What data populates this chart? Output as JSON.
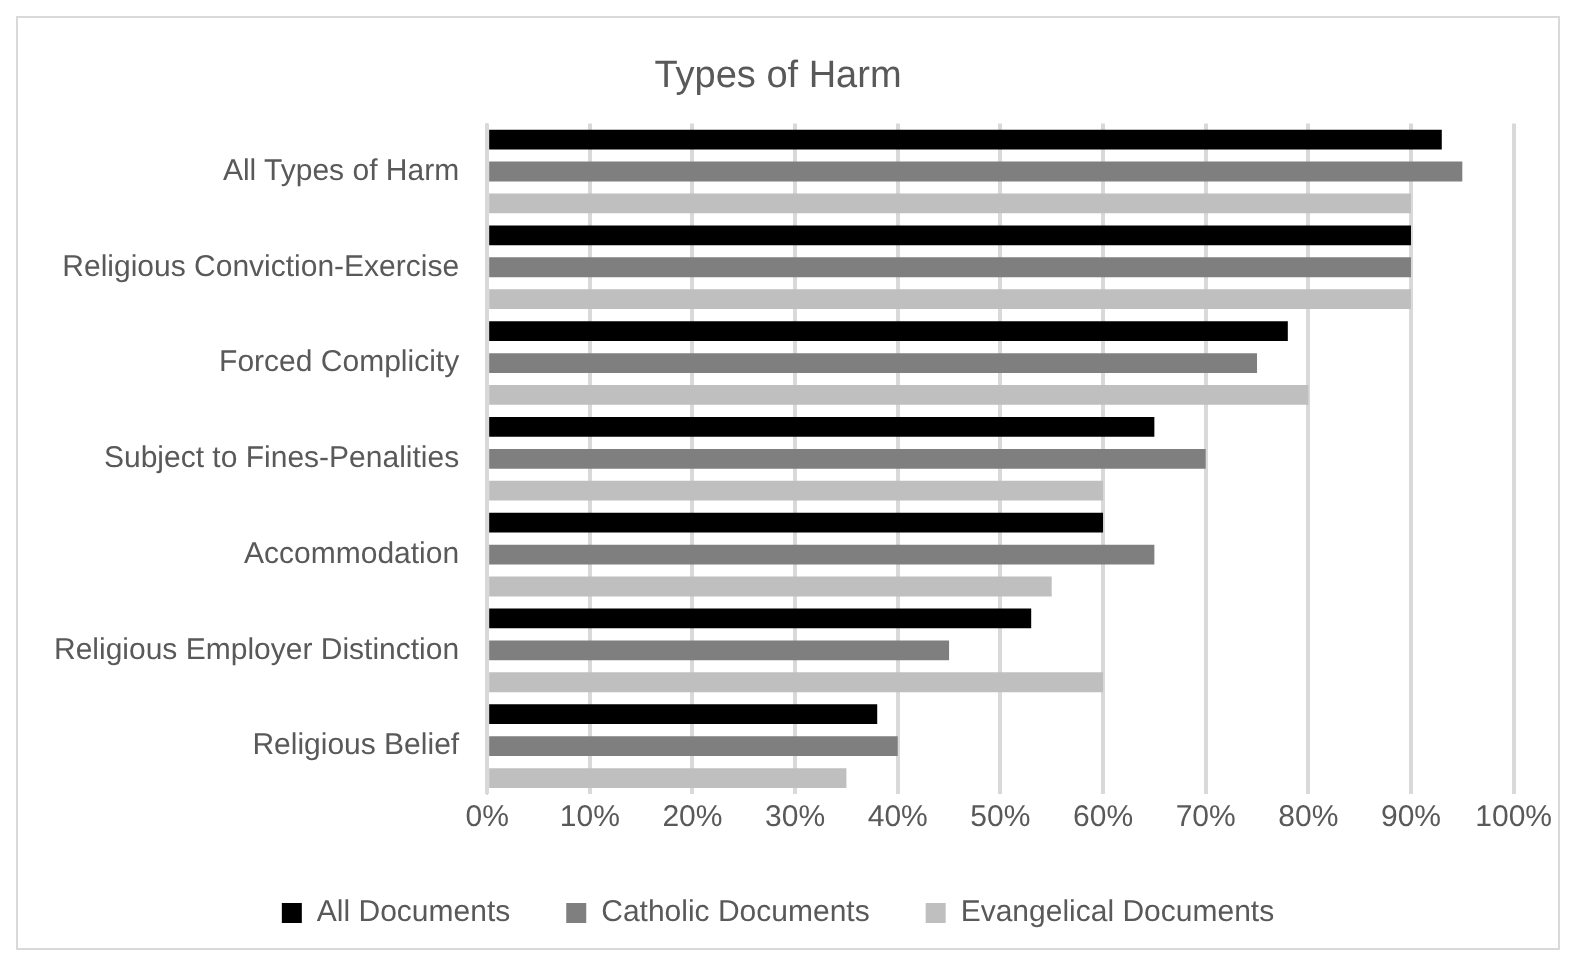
{
  "chart_data": {
    "type": "bar",
    "orientation": "horizontal",
    "title": "Types of Harm",
    "categories": [
      "All Types of Harm",
      "Religious Conviction-Exercise",
      "Forced Complicity",
      "Subject to Fines-Penalities",
      "Accommodation",
      "Religious Employer Distinction",
      "Religious Belief"
    ],
    "series": [
      {
        "name": "All Documents",
        "color": "#000000",
        "values": [
          93,
          90,
          78,
          65,
          60,
          53,
          38
        ]
      },
      {
        "name": "Catholic Documents",
        "color": "#7f7f7f",
        "values": [
          95,
          90,
          75,
          70,
          65,
          45,
          40
        ]
      },
      {
        "name": "Evangelical Documents",
        "color": "#bfbfbf",
        "values": [
          90,
          90,
          80,
          60,
          55,
          60,
          35
        ]
      }
    ],
    "xlim": [
      0,
      100
    ],
    "xticks": [
      {
        "value": 0,
        "label": "0%"
      },
      {
        "value": 10,
        "label": "10%"
      },
      {
        "value": 20,
        "label": "20%"
      },
      {
        "value": 30,
        "label": "30%"
      },
      {
        "value": 40,
        "label": "40%"
      },
      {
        "value": 50,
        "label": "50%"
      },
      {
        "value": 60,
        "label": "60%"
      },
      {
        "value": 70,
        "label": "70%"
      },
      {
        "value": 80,
        "label": "80%"
      },
      {
        "value": 90,
        "label": "90%"
      },
      {
        "value": 100,
        "label": "100%"
      }
    ],
    "grid": "x",
    "legend": "bottom"
  }
}
